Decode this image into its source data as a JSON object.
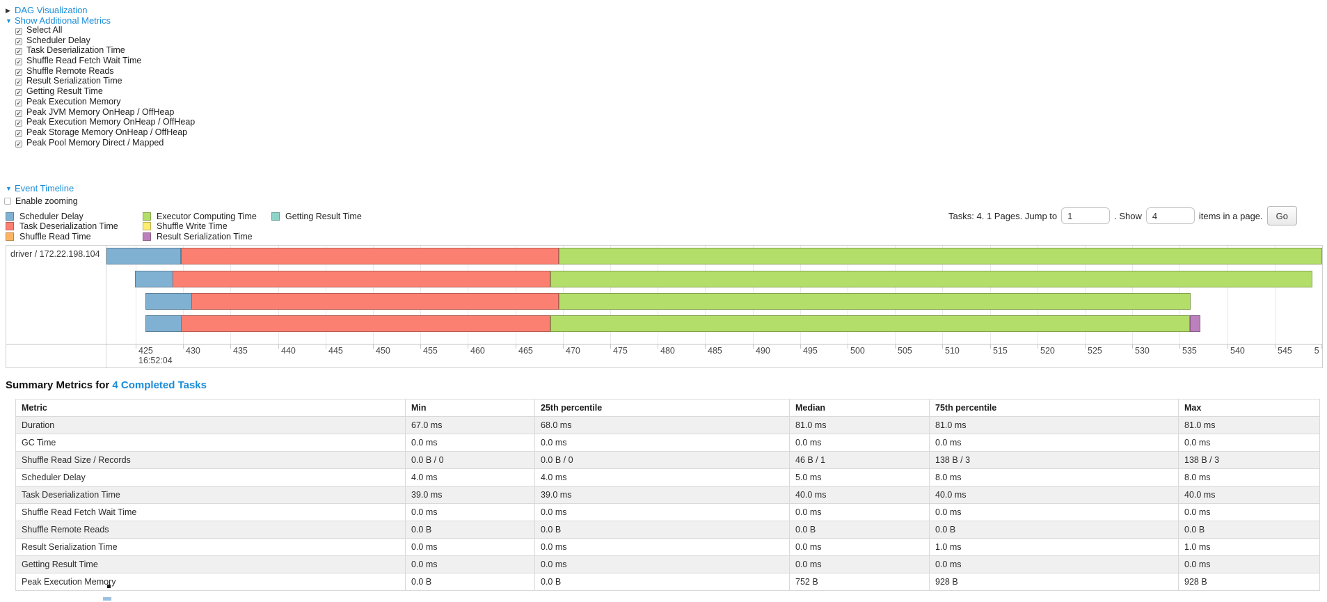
{
  "accent_color": "#1a8cd8",
  "sections": {
    "dag": {
      "label": "DAG Visualization",
      "expanded": false
    },
    "metrics": {
      "label": "Show Additional Metrics",
      "expanded": true
    },
    "timeline": {
      "label": "Event Timeline",
      "expanded": true
    }
  },
  "metrics_options": [
    {
      "label": "Select All",
      "checked": true
    },
    {
      "label": "Scheduler Delay",
      "checked": true
    },
    {
      "label": "Task Deserialization Time",
      "checked": true
    },
    {
      "label": "Shuffle Read Fetch Wait Time",
      "checked": true
    },
    {
      "label": "Shuffle Remote Reads",
      "checked": true
    },
    {
      "label": "Result Serialization Time",
      "checked": true
    },
    {
      "label": "Getting Result Time",
      "checked": true
    },
    {
      "label": "Peak Execution Memory",
      "checked": true
    },
    {
      "label": "Peak JVM Memory OnHeap / OffHeap",
      "checked": true
    },
    {
      "label": "Peak Execution Memory OnHeap / OffHeap",
      "checked": true
    },
    {
      "label": "Peak Storage Memory OnHeap / OffHeap",
      "checked": true
    },
    {
      "label": "Peak Pool Memory Direct / Mapped",
      "checked": true
    }
  ],
  "enable_zooming": {
    "label": "Enable zooming",
    "checked": false
  },
  "pagination": {
    "summary": "Tasks: 4. 1 Pages. Jump to",
    "jump_value": "1",
    "between": ". Show",
    "items_value": "4",
    "suffix": "items in a page.",
    "go_label": "Go"
  },
  "chart_data": {
    "type": "timeline",
    "row_label": "driver / 172.22.198.104",
    "xlim": [
      421.9,
      549.9
    ],
    "time_anchor": "16:52:04",
    "colors": {
      "scheduler_delay": "#80B1D3",
      "task_deserialization": "#FB8072",
      "shuffle_read": "#FDB462",
      "executor_computing": "#B3DE69",
      "shuffle_write": "#FFED6F",
      "result_serialization": "#BC80BD",
      "getting_result": "#8DD3C7"
    },
    "legend_columns": [
      [
        {
          "key": "scheduler_delay",
          "label": "Scheduler Delay"
        },
        {
          "key": "task_deserialization",
          "label": "Task Deserialization Time"
        },
        {
          "key": "shuffle_read",
          "label": "Shuffle Read Time"
        }
      ],
      [
        {
          "key": "executor_computing",
          "label": "Executor Computing Time"
        },
        {
          "key": "shuffle_write",
          "label": "Shuffle Write Time"
        },
        {
          "key": "result_serialization",
          "label": "Result Serialization Time"
        }
      ],
      [
        {
          "key": "getting_result",
          "label": "Getting Result Time"
        }
      ]
    ],
    "x_axis": {
      "ticks": [
        {
          "t": 425,
          "label": "425",
          "sub": "16:52:04"
        },
        {
          "t": 430,
          "label": "430"
        },
        {
          "t": 435,
          "label": "435"
        },
        {
          "t": 440,
          "label": "440"
        },
        {
          "t": 445,
          "label": "445"
        },
        {
          "t": 450,
          "label": "450"
        },
        {
          "t": 455,
          "label": "455"
        },
        {
          "t": 460,
          "label": "460"
        },
        {
          "t": 465,
          "label": "465"
        },
        {
          "t": 470,
          "label": "470"
        },
        {
          "t": 475,
          "label": "475"
        },
        {
          "t": 480,
          "label": "480"
        },
        {
          "t": 485,
          "label": "485"
        },
        {
          "t": 490,
          "label": "490"
        },
        {
          "t": 495,
          "label": "495"
        },
        {
          "t": 500,
          "label": "500"
        },
        {
          "t": 505,
          "label": "505"
        },
        {
          "t": 510,
          "label": "510"
        },
        {
          "t": 515,
          "label": "515"
        },
        {
          "t": 520,
          "label": "520"
        },
        {
          "t": 525,
          "label": "525"
        },
        {
          "t": 530,
          "label": "530"
        },
        {
          "t": 535,
          "label": "535"
        },
        {
          "t": 540,
          "label": "540"
        },
        {
          "t": 545,
          "label": "545"
        },
        {
          "t": 550,
          "label": "5"
        }
      ]
    },
    "tasks": [
      {
        "segments": [
          {
            "type": "scheduler_delay",
            "from": 421.9,
            "to": 429.8
          },
          {
            "type": "task_deserialization",
            "from": 429.8,
            "to": 469.6
          },
          {
            "type": "executor_computing",
            "from": 469.6,
            "to": 550.4
          }
        ]
      },
      {
        "segments": [
          {
            "type": "scheduler_delay",
            "from": 424.9,
            "to": 428.9
          },
          {
            "type": "task_deserialization",
            "from": 428.9,
            "to": 468.7
          },
          {
            "type": "executor_computing",
            "from": 468.7,
            "to": 549.0
          }
        ]
      },
      {
        "segments": [
          {
            "type": "scheduler_delay",
            "from": 426.0,
            "to": 430.9
          },
          {
            "type": "task_deserialization",
            "from": 430.9,
            "to": 469.6
          },
          {
            "type": "executor_computing",
            "from": 469.6,
            "to": 536.2
          }
        ]
      },
      {
        "segments": [
          {
            "type": "scheduler_delay",
            "from": 426.0,
            "to": 429.8
          },
          {
            "type": "task_deserialization",
            "from": 429.8,
            "to": 468.7
          },
          {
            "type": "executor_computing",
            "from": 468.7,
            "to": 536.1
          },
          {
            "type": "result_serialization",
            "from": 536.1,
            "to": 537.2
          }
        ]
      }
    ]
  },
  "summary": {
    "title_prefix": "Summary Metrics for",
    "title_link": "4 Completed Tasks",
    "headers": [
      "Metric",
      "Min",
      "25th percentile",
      "Median",
      "75th percentile",
      "Max"
    ],
    "rows": [
      [
        "Duration",
        "67.0 ms",
        "68.0 ms",
        "81.0 ms",
        "81.0 ms",
        "81.0 ms"
      ],
      [
        "GC Time",
        "0.0 ms",
        "0.0 ms",
        "0.0 ms",
        "0.0 ms",
        "0.0 ms"
      ],
      [
        "Shuffle Read Size / Records",
        "0.0 B / 0",
        "0.0 B / 0",
        "46 B / 1",
        "138 B / 3",
        "138 B / 3"
      ],
      [
        "Scheduler Delay",
        "4.0 ms",
        "4.0 ms",
        "5.0 ms",
        "8.0 ms",
        "8.0 ms"
      ],
      [
        "Task Deserialization Time",
        "39.0 ms",
        "39.0 ms",
        "40.0 ms",
        "40.0 ms",
        "40.0 ms"
      ],
      [
        "Shuffle Read Fetch Wait Time",
        "0.0 ms",
        "0.0 ms",
        "0.0 ms",
        "0.0 ms",
        "0.0 ms"
      ],
      [
        "Shuffle Remote Reads",
        "0.0 B",
        "0.0 B",
        "0.0 B",
        "0.0 B",
        "0.0 B"
      ],
      [
        "Result Serialization Time",
        "0.0 ms",
        "0.0 ms",
        "0.0 ms",
        "1.0 ms",
        "1.0 ms"
      ],
      [
        "Getting Result Time",
        "0.0 ms",
        "0.0 ms",
        "0.0 ms",
        "0.0 ms",
        "0.0 ms"
      ],
      [
        "Peak Execution Memory",
        "0.0 B",
        "0.0 B",
        "752 B",
        "928 B",
        "928 B"
      ]
    ]
  }
}
